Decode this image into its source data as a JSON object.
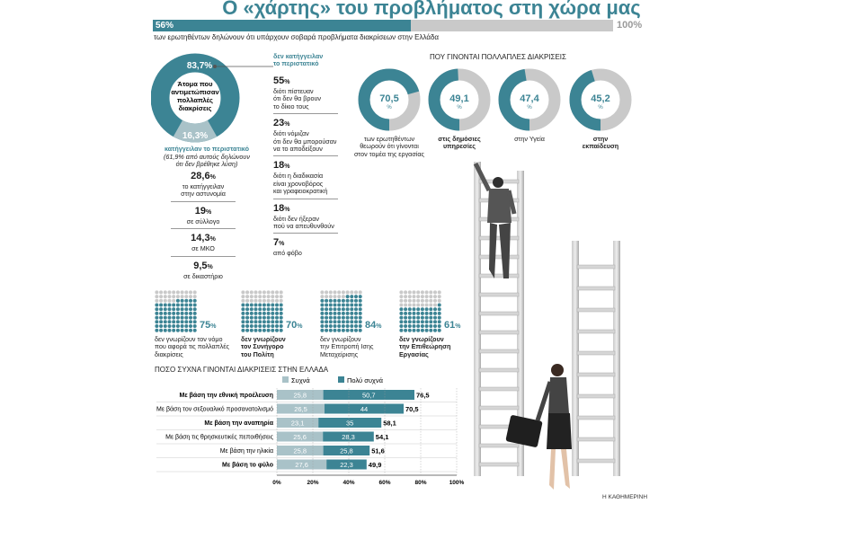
{
  "title": "Ο «χάρτης» του προβλήματος στη χώρα μας",
  "topbar": {
    "value": 56,
    "left_label": "56%",
    "right_label": "100%",
    "caption": "των ερωτηθέντων δηλώνουν ότι υπάρχουν σοβαρά προβλήματα διακρίσεων στην Ελλάδα"
  },
  "donut": {
    "big_value": "83,7%",
    "small_value": "16,3%",
    "big": 83.7,
    "small": 16.3,
    "center_text": [
      "Άτομα που",
      "αντιμετώπισαν",
      "πολλαπλές",
      "διακρίσεις"
    ],
    "colors": {
      "big": "#3c8494",
      "small": "#a9c2c8"
    }
  },
  "not_reported": {
    "title": [
      "δεν κατήγγειλαν",
      "το περιστατικό"
    ],
    "items": [
      {
        "value": "55",
        "text": [
          "διότι πίστευαν",
          "ότι δεν θα βρουν",
          "το δίκιο τους"
        ]
      },
      {
        "value": "23",
        "text": [
          "διότι νόμιζαν",
          "ότι δεν θα μπορούσαν",
          "να το αποδείξουν"
        ]
      },
      {
        "value": "18",
        "text": [
          "διότι η διαδικασία",
          "είναι χρονοβόρος",
          "και γραφειοκρατική"
        ]
      },
      {
        "value": "18",
        "text": [
          "διότι δεν ήξεραν",
          "πού να απευθυνθούν"
        ]
      },
      {
        "value": "7",
        "text": [
          "από φόβο"
        ]
      }
    ]
  },
  "reported": {
    "title": [
      "κατήγγειλαν το περιστατικό"
    ],
    "note": [
      "(61,9% από αυτούς δηλώνουν",
      "ότι δεν βρέθηκε λύση)"
    ],
    "items": [
      {
        "value": "28,6",
        "text": [
          "το κατήγγειλαν",
          "στην αστυνομία"
        ]
      },
      {
        "value": "19",
        "text": [
          "σε σύλλογο"
        ]
      },
      {
        "value": "14,3",
        "text": [
          "σε ΜΚΟ"
        ]
      },
      {
        "value": "9,5",
        "text": [
          "σε δικαστήριο"
        ]
      }
    ]
  },
  "where": {
    "heading": "ΠΟΥ ΓΙΝΟΝΤΑΙ ΠΟΛΛΑΠΛΕΣ ΔΙΑΚΡΙΣΕΙΣ",
    "items": [
      {
        "value": "70,5",
        "v": 70.5,
        "label": [
          "των ερωτηθέντων",
          "θεωρούν ότι γίνονται",
          "στον τομέα της εργασίας"
        ],
        "bold": false
      },
      {
        "value": "49,1",
        "v": 49.1,
        "label": [
          "στις δημόσιες",
          "υπηρεσίες"
        ],
        "bold": true
      },
      {
        "value": "47,4",
        "v": 47.4,
        "label": [
          "στην Υγεία"
        ],
        "bold": false
      },
      {
        "value": "45,2",
        "v": 45.2,
        "label": [
          "στην",
          "εκπαίδευση"
        ],
        "bold": true
      }
    ]
  },
  "waffles": [
    {
      "value": "75",
      "v": 75,
      "label": [
        "δεν γνωρίζουν τον νόμο",
        "που αφορά τις πολλαπλές",
        "διακρίσεις"
      ],
      "bold_lines": 0
    },
    {
      "value": "70",
      "v": 70,
      "label": [
        "δεν γνωρίζουν",
        "τον Συνήγορο",
        "του Πολίτη"
      ],
      "bold_lines": 3
    },
    {
      "value": "84",
      "v": 84,
      "label": [
        "δεν γνωρίζουν",
        "την Επιτροπή Ισης",
        "Μεταχείρισης"
      ],
      "bold_lines": 0
    },
    {
      "value": "61",
      "v": 61,
      "label": [
        "δεν γνωρίζουν",
        "την Επιθεώρηση",
        "Εργασίας"
      ],
      "bold_lines": 3
    }
  ],
  "chart_data": {
    "type": "bar",
    "title": "ΠΟΣΟ ΣΥΧΝΑ ΓΙΝΟΝΤΑΙ ΔΙΑΚΡΙΣΕΙΣ ΣΤΗΝ ΕΛΛΑΔΑ",
    "categories": [
      "Με βάση την εθνική προέλευση",
      "Με βάση τον σεξουαλικό προσανατολισμό",
      "Με βάση την αναπηρία",
      "Με βάση τις θρησκευτικές πεποιθήσεις",
      "Με βάση την ηλικία",
      "Με βάση το φύλο"
    ],
    "bold_categories": [
      true,
      false,
      true,
      false,
      false,
      true
    ],
    "series": [
      {
        "name": "Συχνά",
        "values": [
          25.8,
          26.5,
          23.1,
          25.6,
          25.8,
          27.6
        ],
        "labels": [
          "25,8",
          "26,5",
          "23,1",
          "25,6",
          "25,8",
          "27,6"
        ],
        "color": "#a9c2c8"
      },
      {
        "name": "Πολύ συχνά",
        "values": [
          50.7,
          44,
          35,
          28.3,
          25.8,
          22.3
        ],
        "labels": [
          "50,7",
          "44",
          "35",
          "28,3",
          "25,8",
          "22,3"
        ],
        "color": "#3c8494"
      }
    ],
    "totals": [
      "76,5",
      "70,5",
      "58,1",
      "54,1",
      "51,6",
      "49,9"
    ],
    "xlim": [
      0,
      100
    ],
    "xticks": [
      "0%",
      "20%",
      "40%",
      "60%",
      "80%",
      "100%"
    ],
    "stacked": true,
    "orientation": "horizontal"
  },
  "credit": "Η ΚΑΘΗΜΕΡΙΝΗ"
}
